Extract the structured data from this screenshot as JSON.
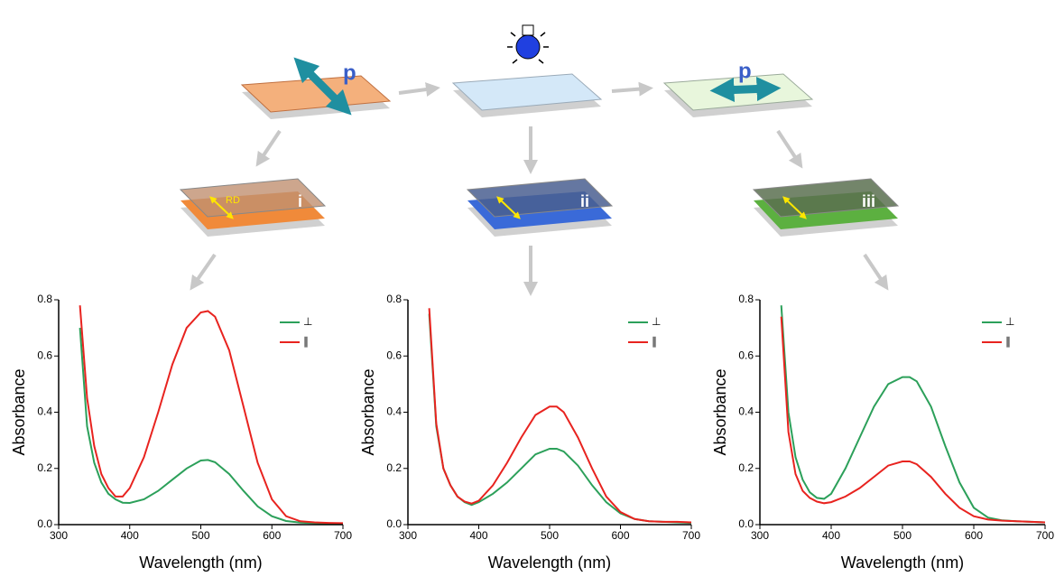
{
  "diagram": {
    "labels": [
      "p",
      "p",
      "RD",
      "i",
      "ii",
      "iii"
    ]
  },
  "chart_data": [
    {
      "type": "line",
      "x_label": "Wavelength (nm)",
      "y_label": "Absorbance",
      "legend": "upper right",
      "x": [
        330,
        340,
        350,
        360,
        370,
        380,
        390,
        400,
        420,
        440,
        460,
        480,
        500,
        510,
        520,
        540,
        560,
        580,
        600,
        620,
        640,
        660,
        680,
        700
      ],
      "series": [
        {
          "name": "⊥",
          "color": "#2ca05a",
          "values": [
            0.7,
            0.35,
            0.22,
            0.15,
            0.11,
            0.09,
            0.078,
            0.077,
            0.09,
            0.12,
            0.16,
            0.2,
            0.228,
            0.23,
            0.222,
            0.18,
            0.12,
            0.065,
            0.03,
            0.013,
            0.007,
            0.005,
            0.004,
            0.003
          ]
        },
        {
          "name": "∥",
          "color": "#e8231f",
          "values": [
            0.78,
            0.45,
            0.28,
            0.18,
            0.13,
            0.1,
            0.1,
            0.13,
            0.24,
            0.4,
            0.57,
            0.7,
            0.755,
            0.76,
            0.74,
            0.62,
            0.42,
            0.22,
            0.09,
            0.03,
            0.012,
            0.008,
            0.006,
            0.005
          ]
        }
      ],
      "xlim": [
        300,
        700
      ],
      "xticks": [
        300,
        400,
        500,
        600,
        700
      ],
      "ylim": [
        0,
        0.8
      ],
      "yticks": [
        {
          "value": 0,
          "label": "0.0"
        },
        0.2,
        0.4,
        0.6,
        0.8
      ]
    },
    {
      "type": "line",
      "x_label": "Wavelength (nm)",
      "y_label": "Absorbance",
      "legend": "upper right",
      "x": [
        330,
        340,
        350,
        360,
        370,
        380,
        390,
        400,
        420,
        440,
        460,
        480,
        500,
        510,
        520,
        540,
        560,
        580,
        600,
        620,
        640,
        660,
        680,
        700
      ],
      "series": [
        {
          "name": "⊥",
          "color": "#2ca05a",
          "values": [
            0.75,
            0.35,
            0.2,
            0.14,
            0.1,
            0.08,
            0.07,
            0.08,
            0.11,
            0.15,
            0.2,
            0.25,
            0.27,
            0.27,
            0.26,
            0.21,
            0.14,
            0.08,
            0.04,
            0.02,
            0.012,
            0.01,
            0.008,
            0.006
          ]
        },
        {
          "name": "∥",
          "color": "#e8231f",
          "values": [
            0.77,
            0.36,
            0.2,
            0.14,
            0.1,
            0.082,
            0.075,
            0.085,
            0.14,
            0.22,
            0.31,
            0.39,
            0.42,
            0.42,
            0.4,
            0.31,
            0.2,
            0.1,
            0.045,
            0.02,
            0.012,
            0.01,
            0.01,
            0.008
          ]
        }
      ],
      "xlim": [
        300,
        700
      ],
      "xticks": [
        300,
        400,
        500,
        600,
        700
      ],
      "ylim": [
        0,
        0.8
      ],
      "yticks": [
        {
          "value": 0,
          "label": "0.0"
        },
        0.2,
        0.4,
        0.6,
        0.8
      ]
    },
    {
      "type": "line",
      "x_label": "Wavelength (nm)",
      "y_label": "Absorbance",
      "legend": "upper right",
      "x": [
        330,
        340,
        350,
        360,
        370,
        380,
        390,
        400,
        420,
        440,
        460,
        480,
        500,
        510,
        520,
        540,
        560,
        580,
        600,
        620,
        640,
        660,
        680,
        700
      ],
      "series": [
        {
          "name": "⊥",
          "color": "#2ca05a",
          "values": [
            0.78,
            0.4,
            0.24,
            0.16,
            0.115,
            0.095,
            0.092,
            0.11,
            0.2,
            0.31,
            0.42,
            0.5,
            0.525,
            0.525,
            0.51,
            0.42,
            0.28,
            0.15,
            0.06,
            0.025,
            0.015,
            0.012,
            0.01,
            0.008
          ]
        },
        {
          "name": "∥",
          "color": "#e8231f",
          "values": [
            0.74,
            0.33,
            0.18,
            0.12,
            0.095,
            0.082,
            0.076,
            0.08,
            0.1,
            0.13,
            0.17,
            0.21,
            0.225,
            0.225,
            0.215,
            0.17,
            0.11,
            0.06,
            0.03,
            0.018,
            0.014,
            0.012,
            0.01,
            0.008
          ]
        }
      ],
      "xlim": [
        300,
        700
      ],
      "xticks": [
        300,
        400,
        500,
        600,
        700
      ],
      "ylim": [
        0,
        0.8
      ],
      "yticks": [
        {
          "value": 0,
          "label": "0.0"
        },
        0.2,
        0.4,
        0.6,
        0.8
      ]
    }
  ]
}
